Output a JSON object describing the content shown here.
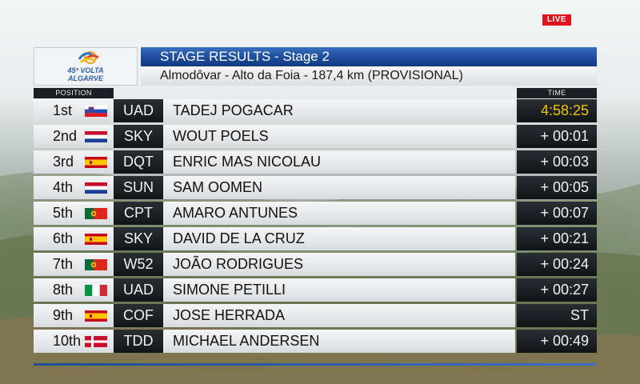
{
  "live_label": "LIVE",
  "logo": {
    "line1": "45ª VOLTA",
    "line2": "ALGARVE"
  },
  "header": {
    "title": "STAGE RESULTS - Stage 2",
    "subtitle": "Almodôvar - Alto da Foia - 187,4 km (PROVISIONAL)"
  },
  "columns": {
    "position": "POSITION",
    "time": "TIME"
  },
  "colors": {
    "accent": "#1d4c9a",
    "leader_time": "#f1c400",
    "live": "#e0141c"
  },
  "results": [
    {
      "position": "1st",
      "flag": "slovenia-flag",
      "team": "UAD",
      "rider": "TADEJ POGACAR",
      "time": "4:58:25"
    },
    {
      "position": "2nd",
      "flag": "netherlands-flag",
      "team": "SKY",
      "rider": "WOUT POELS",
      "time": "+ 00:01"
    },
    {
      "position": "3rd",
      "flag": "spain-flag",
      "team": "DQT",
      "rider": "ENRIC MAS NICOLAU",
      "time": "+ 00:03"
    },
    {
      "position": "4th",
      "flag": "netherlands-flag",
      "team": "SUN",
      "rider": "SAM OOMEN",
      "time": "+ 00:05"
    },
    {
      "position": "5th",
      "flag": "portugal-flag",
      "team": "CPT",
      "rider": "AMARO ANTUNES",
      "time": "+ 00:07"
    },
    {
      "position": "6th",
      "flag": "spain-flag",
      "team": "SKY",
      "rider": "DAVID DE LA CRUZ",
      "time": "+ 00:21"
    },
    {
      "position": "7th",
      "flag": "portugal-flag",
      "team": "W52",
      "rider": "JOÃO RODRIGUES",
      "time": "+ 00:24"
    },
    {
      "position": "8th",
      "flag": "italy-flag",
      "team": "UAD",
      "rider": "SIMONE PETILLI",
      "time": "+ 00:27"
    },
    {
      "position": "9th",
      "flag": "spain-flag",
      "team": "COF",
      "rider": "JOSE HERRADA",
      "time": "ST"
    },
    {
      "position": "10th",
      "flag": "denmark-flag",
      "team": "TDD",
      "rider": "MICHAEL ANDERSEN",
      "time": "+ 00:49"
    }
  ]
}
